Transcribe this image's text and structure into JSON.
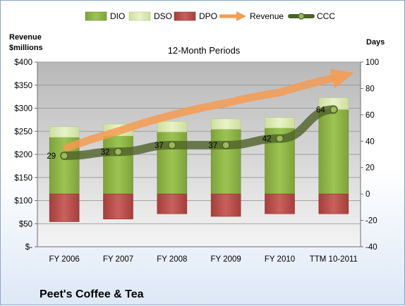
{
  "chart_data": {
    "type": "bar",
    "subtitle": "12-Month Periods",
    "company": "Peet's Coffee & Tea",
    "left_axis_title": [
      "Revenue",
      "$millions"
    ],
    "right_axis_title": "Days",
    "categories": [
      "FY 2006",
      "FY 2007",
      "FY 2008",
      "FY 2009",
      "FY 2010",
      "TTM 10-2011"
    ],
    "left_axis": {
      "min": 0,
      "max": 400,
      "step": 50,
      "tick_labels": [
        "$-",
        "$50",
        "$100",
        "$150",
        "$200",
        "$250",
        "$300",
        "$350",
        "$400"
      ]
    },
    "right_axis": {
      "min": -40,
      "max": 100,
      "step": 20,
      "tick_labels": [
        "-40",
        "-20",
        "0",
        "20",
        "40",
        "60",
        "80",
        "100"
      ]
    },
    "grid": true,
    "legend_position": "top",
    "legend": [
      "DIO",
      "DSO",
      "DPO",
      "Revenue",
      "CCC"
    ],
    "series": [
      {
        "name": "DIO",
        "axis": "right",
        "values": [
          43,
          44,
          47,
          49,
          50,
          64
        ],
        "color": "#8db33e"
      },
      {
        "name": "DSO",
        "axis": "right",
        "values": [
          8,
          9,
          8,
          8,
          8,
          9
        ],
        "color": "#dbeab0"
      },
      {
        "name": "DPO",
        "axis": "right",
        "values": [
          -21,
          -19,
          -15,
          -17,
          -15,
          -15
        ],
        "color": "#c0504d"
      },
      {
        "name": "Revenue",
        "axis": "left",
        "values": [
          212,
          250,
          285,
          311,
          334,
          365
        ],
        "color": "#f79646"
      },
      {
        "name": "CCC",
        "axis": "right",
        "values": [
          29,
          32,
          37,
          37,
          42,
          64
        ],
        "labels": [
          "29",
          "32",
          "37",
          "37",
          "42",
          "64"
        ],
        "color": "#4f6228"
      }
    ]
  }
}
